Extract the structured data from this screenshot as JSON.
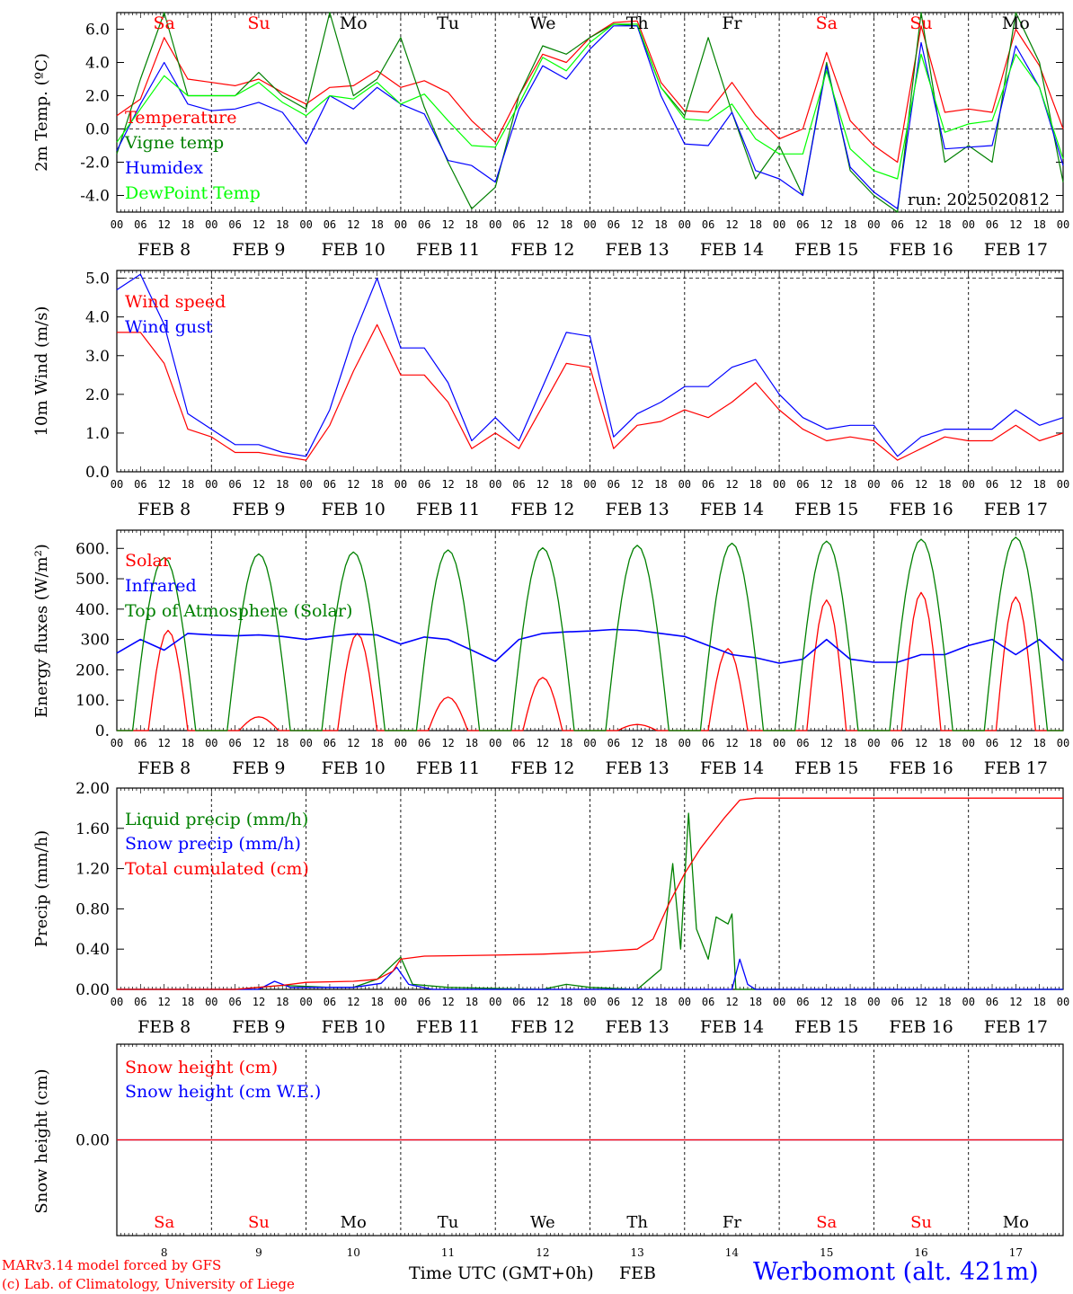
{
  "run_label": "run: 2025020812",
  "footer": {
    "model_line": "MARv3.14 model forced by GFS",
    "lab_line": "(c) Lab. of Climatology, University of Liege",
    "time_axis_label": "Time UTC (GMT+0h)",
    "month_label": "FEB",
    "station": "Werbomont (alt. 421m)"
  },
  "time_axis": {
    "hour_ticks": [
      "00",
      "06",
      "12",
      "18"
    ],
    "final_tick": "00",
    "month": "FEB",
    "day_numbers": [
      "8",
      "9",
      "10",
      "11",
      "12",
      "13",
      "14",
      "15",
      "16",
      "17"
    ],
    "weekdays": [
      "Sa",
      "Su",
      "Mo",
      "Tu",
      "We",
      "Th",
      "Fr",
      "Sa",
      "Su",
      "Mo"
    ],
    "weekend_color": "#ff0000",
    "weekday_color": "#000000"
  },
  "colors": {
    "red": "#ff0000",
    "green": "#008000",
    "blue": "#0000ff",
    "light_green": "#00ff00",
    "station": "#0000ff",
    "footer": "#ff0000"
  },
  "chart_data": [
    {
      "type": "line",
      "ylabel": "2m Temp. (ºC)",
      "ylim": [
        -5.0,
        7.0
      ],
      "yticks": [
        "6.0",
        "4.0",
        "2.0",
        "0.0",
        "-2.0",
        "-4.0"
      ],
      "ytick_values": [
        6,
        4,
        2,
        0,
        -2,
        -4
      ],
      "dashed_ref": 0,
      "x_hours": [
        0,
        6,
        12,
        18,
        24,
        30,
        36,
        42,
        48,
        54,
        60,
        66,
        72,
        78,
        84,
        90,
        96,
        102,
        108,
        114,
        120,
        126,
        132,
        138,
        144,
        150,
        156,
        162,
        168,
        174,
        180,
        186,
        192,
        198,
        204,
        210,
        216,
        222,
        228,
        234,
        240
      ],
      "series": [
        {
          "name": "Temperature",
          "color": "#ff0000",
          "values": [
            0.8,
            1.8,
            5.5,
            3.0,
            2.8,
            2.6,
            3.0,
            2.2,
            1.5,
            2.5,
            2.6,
            3.5,
            2.5,
            2.9,
            2.2,
            0.5,
            -0.8,
            2.0,
            4.5,
            4.0,
            5.5,
            6.4,
            6.5,
            2.8,
            1.1,
            1.0,
            2.8,
            0.8,
            -0.6,
            0.0,
            4.6,
            0.5,
            -1.0,
            -2.0,
            6.2,
            1.0,
            1.2,
            1.0,
            6.0,
            3.8,
            0.0
          ]
        },
        {
          "name": "Vigne temp",
          "color": "#008000",
          "values": [
            -1.5,
            3.0,
            7.0,
            2.0,
            2.0,
            2.0,
            3.4,
            2.0,
            1.2,
            7.0,
            2.0,
            3.0,
            5.5,
            1.3,
            -2.0,
            -4.8,
            -3.5,
            2.0,
            5.0,
            4.5,
            5.5,
            6.3,
            6.2,
            2.5,
            0.8,
            5.5,
            1.0,
            -3.0,
            -1.0,
            -4.0,
            4.0,
            -2.5,
            -4.0,
            -5.0,
            7.0,
            -2.0,
            -1.0,
            -2.0,
            7.0,
            4.0,
            -3.2
          ]
        },
        {
          "name": "Humidex",
          "color": "#0000ff",
          "values": [
            -1.3,
            1.5,
            4.0,
            1.5,
            1.1,
            1.2,
            1.6,
            1.0,
            -0.9,
            2.0,
            1.2,
            2.5,
            1.5,
            0.9,
            -1.9,
            -2.2,
            -3.2,
            1.2,
            3.8,
            3.0,
            4.8,
            6.2,
            6.2,
            2.0,
            -0.9,
            -1.0,
            1.0,
            -2.5,
            -3.0,
            -4.0,
            3.8,
            -2.3,
            -3.8,
            -4.8,
            5.2,
            -1.2,
            -1.1,
            -1.0,
            5.0,
            2.5,
            -2.2
          ]
        },
        {
          "name": "DewPoint Temp",
          "color": "#00ff00",
          "values": [
            -0.8,
            1.2,
            3.2,
            2.0,
            2.0,
            2.0,
            2.8,
            1.6,
            0.8,
            2.0,
            1.8,
            2.8,
            1.5,
            2.1,
            0.5,
            -1.0,
            -1.1,
            1.5,
            4.3,
            3.5,
            5.2,
            6.3,
            6.3,
            2.5,
            0.6,
            0.5,
            1.5,
            -0.6,
            -1.5,
            -1.5,
            3.5,
            -1.2,
            -2.5,
            -3.0,
            4.5,
            -0.2,
            0.3,
            0.5,
            4.5,
            2.5,
            -1.8
          ]
        }
      ]
    },
    {
      "type": "line",
      "ylabel": "10m Wind (m/s)",
      "ylim": [
        0.0,
        5.2
      ],
      "yticks": [
        "5.0",
        "4.0",
        "3.0",
        "2.0",
        "1.0",
        "0.0"
      ],
      "ytick_values": [
        5,
        4,
        3,
        2,
        1,
        0
      ],
      "dashed_ref": 5,
      "x_hours": [
        0,
        6,
        12,
        18,
        24,
        30,
        36,
        42,
        48,
        54,
        60,
        66,
        72,
        78,
        84,
        90,
        96,
        102,
        108,
        114,
        120,
        126,
        132,
        138,
        144,
        150,
        156,
        162,
        168,
        174,
        180,
        186,
        192,
        198,
        204,
        210,
        216,
        222,
        228,
        234,
        240
      ],
      "series": [
        {
          "name": "Wind speed",
          "color": "#ff0000",
          "values": [
            3.6,
            3.6,
            2.8,
            1.1,
            0.9,
            0.5,
            0.5,
            0.4,
            0.3,
            1.2,
            2.6,
            3.8,
            2.5,
            2.5,
            1.8,
            0.6,
            1.0,
            0.6,
            1.7,
            2.8,
            2.7,
            0.6,
            1.2,
            1.3,
            1.6,
            1.4,
            1.8,
            2.3,
            1.6,
            1.1,
            0.8,
            0.9,
            0.8,
            0.3,
            0.6,
            0.9,
            0.8,
            0.8,
            1.2,
            0.8,
            1.0
          ]
        },
        {
          "name": "Wind gust",
          "color": "#0000ff",
          "values": [
            4.7,
            5.1,
            3.8,
            1.5,
            1.1,
            0.7,
            0.7,
            0.5,
            0.4,
            1.6,
            3.5,
            5.0,
            3.2,
            3.2,
            2.3,
            0.8,
            1.4,
            0.8,
            2.2,
            3.6,
            3.5,
            0.9,
            1.5,
            1.8,
            2.2,
            2.2,
            2.7,
            2.9,
            2.0,
            1.4,
            1.1,
            1.2,
            1.2,
            0.4,
            0.9,
            1.1,
            1.1,
            1.1,
            1.6,
            1.2,
            1.4
          ]
        }
      ]
    },
    {
      "type": "line",
      "ylabel": "Energy fluxes (W/m²)",
      "ylim": [
        0,
        660
      ],
      "yticks": [
        "600.",
        "500.",
        "400.",
        "300",
        "200.",
        "100.",
        "0."
      ],
      "ytick_values": [
        600,
        500,
        400,
        300,
        200,
        100,
        0
      ],
      "series": [
        {
          "name": "Solar",
          "color": "#ff0000",
          "daily_peaks": [
            {
              "peak": 330,
              "hour": 13
            },
            {
              "peak": 45,
              "hour": 12
            },
            {
              "peak": 320,
              "hour": 13
            },
            {
              "peak": 110,
              "hour": 12
            },
            {
              "peak": 175,
              "hour": 12
            },
            {
              "peak": 20,
              "hour": 12
            },
            {
              "peak": 270,
              "hour": 11
            },
            {
              "peak": 430,
              "hour": 12
            },
            {
              "peak": 455,
              "hour": 12
            },
            {
              "peak": 440,
              "hour": 12
            }
          ]
        },
        {
          "name": "Infrared",
          "color": "#0000ff",
          "x_hours": [
            0,
            6,
            12,
            18,
            24,
            30,
            36,
            42,
            48,
            54,
            60,
            66,
            72,
            78,
            84,
            90,
            96,
            102,
            108,
            114,
            120,
            126,
            132,
            138,
            144,
            150,
            156,
            162,
            168,
            174,
            180,
            186,
            192,
            198,
            204,
            210,
            216,
            222,
            228,
            234,
            240
          ],
          "values": [
            255,
            300,
            265,
            320,
            315,
            312,
            315,
            310,
            300,
            310,
            318,
            315,
            285,
            308,
            300,
            265,
            228,
            300,
            320,
            325,
            328,
            333,
            330,
            320,
            310,
            280,
            250,
            240,
            222,
            235,
            300,
            235,
            225,
            225,
            250,
            250,
            280,
            300,
            250,
            300,
            230
          ]
        },
        {
          "name": "Top of Atmosphere (Solar)",
          "color": "#008000",
          "daily_peaks": [
            {
              "peak": 570,
              "hour": 12
            },
            {
              "peak": 582,
              "hour": 12
            },
            {
              "peak": 588,
              "hour": 12
            },
            {
              "peak": 595,
              "hour": 12
            },
            {
              "peak": 602,
              "hour": 12
            },
            {
              "peak": 610,
              "hour": 12
            },
            {
              "peak": 617,
              "hour": 12
            },
            {
              "peak": 624,
              "hour": 12
            },
            {
              "peak": 630,
              "hour": 12
            },
            {
              "peak": 637,
              "hour": 12
            }
          ]
        }
      ]
    },
    {
      "type": "line",
      "ylabel": "Precip (mm/h)",
      "ylim": [
        0.0,
        2.0
      ],
      "yticks": [
        "2.00",
        "1.60",
        "1.20",
        "0.80",
        "0.40",
        "0.00"
      ],
      "ytick_values": [
        2.0,
        1.6,
        1.2,
        0.8,
        0.4,
        0.0
      ],
      "series": [
        {
          "name": "Liquid precip (mm/h)",
          "color": "#008000",
          "points": [
            [
              0,
              0
            ],
            [
              30,
              0
            ],
            [
              36,
              0.02
            ],
            [
              42,
              0.04
            ],
            [
              54,
              0.02
            ],
            [
              60,
              0.02
            ],
            [
              66,
              0.1
            ],
            [
              72,
              0.32
            ],
            [
              75,
              0.05
            ],
            [
              84,
              0.02
            ],
            [
              108,
              0
            ],
            [
              114,
              0.05
            ],
            [
              120,
              0.02
            ],
            [
              132,
              0
            ],
            [
              138,
              0.2
            ],
            [
              141,
              1.25
            ],
            [
              143,
              0.4
            ],
            [
              145,
              1.75
            ],
            [
              147,
              0.6
            ],
            [
              150,
              0.3
            ],
            [
              152,
              0.72
            ],
            [
              155,
              0.65
            ],
            [
              156,
              0.75
            ],
            [
              157,
              0
            ],
            [
              240,
              0
            ]
          ]
        },
        {
          "name": "Snow precip (mm/h)",
          "color": "#0000ff",
          "points": [
            [
              0,
              0
            ],
            [
              36,
              0
            ],
            [
              40,
              0.08
            ],
            [
              44,
              0.02
            ],
            [
              60,
              0.02
            ],
            [
              67,
              0.06
            ],
            [
              71,
              0.22
            ],
            [
              74,
              0.05
            ],
            [
              80,
              0
            ],
            [
              152,
              0
            ],
            [
              156,
              0
            ],
            [
              158,
              0.3
            ],
            [
              160,
              0.05
            ],
            [
              162,
              0
            ],
            [
              240,
              0
            ]
          ]
        },
        {
          "name": "Total cumulated (cm)",
          "color": "#ff0000",
          "points": [
            [
              0,
              0
            ],
            [
              30,
              0
            ],
            [
              42,
              0.04
            ],
            [
              48,
              0.07
            ],
            [
              60,
              0.08
            ],
            [
              66,
              0.1
            ],
            [
              70,
              0.18
            ],
            [
              72,
              0.3
            ],
            [
              78,
              0.33
            ],
            [
              96,
              0.34
            ],
            [
              108,
              0.35
            ],
            [
              120,
              0.37
            ],
            [
              132,
              0.4
            ],
            [
              136,
              0.5
            ],
            [
              140,
              0.85
            ],
            [
              144,
              1.15
            ],
            [
              148,
              1.4
            ],
            [
              150,
              1.5
            ],
            [
              154,
              1.7
            ],
            [
              158,
              1.88
            ],
            [
              162,
              1.9
            ],
            [
              240,
              1.9
            ]
          ]
        }
      ]
    },
    {
      "type": "line",
      "ylabel": "Snow height (cm)",
      "ylim": [
        -1,
        1
      ],
      "yticks": [
        "0.00"
      ],
      "ytick_values": [
        0
      ],
      "series": [
        {
          "name": "Snow height (cm)",
          "color": "#ff0000",
          "values": [
            0,
            0
          ]
        },
        {
          "name": "Snow height (cm W.E.)",
          "color": "#0000ff",
          "values": [
            0,
            0
          ]
        }
      ]
    }
  ]
}
